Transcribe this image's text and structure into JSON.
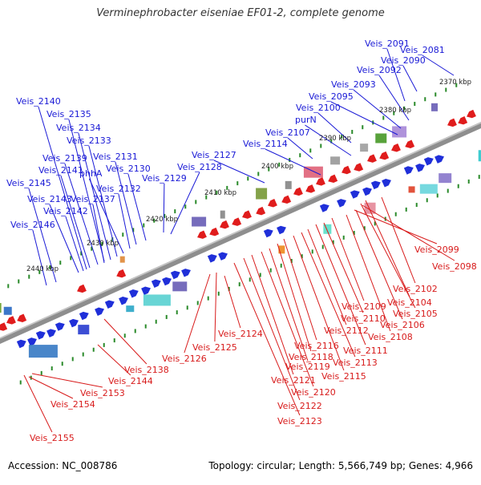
{
  "title": "Verminephrobacter eiseniae EF01-2, complete genome",
  "footer": {
    "accession": "Accession: NC_008786",
    "summary": "Topology: circular; Length: 5,566,749 bp; Genes: 4,966"
  },
  "colors": {
    "forward": "#1f2fd9",
    "reverse": "#e01c1c",
    "forward_label": "#1a1ad6",
    "reverse_label": "#d81b1b",
    "backbone": "#9a9a9a",
    "tick": "#2a8a2a"
  },
  "kbp_marks": [
    "2370 kbp",
    "2380 kbp",
    "2390 kbp",
    "2400 kbp",
    "2410 kbp",
    "2420 kbp",
    "2430 kbp",
    "2440 kbp"
  ],
  "genes_forward": [
    "Veis_2081",
    "Veis_2090",
    "Veis_2091",
    "Veis_2092",
    "Veis_2093",
    "Veis_2095",
    "Veis_2100",
    "purN",
    "Veis_2107",
    "Veis_2114",
    "Veis_2127",
    "Veis_2128",
    "Veis_2129",
    "Veis_2130",
    "Veis_2131",
    "Veis_2132",
    "phhA",
    "Veis_2133",
    "Veis_2134",
    "Veis_2135",
    "Veis_2137",
    "Veis_2139",
    "Veis_2140",
    "Veis_2141",
    "Veis_2142",
    "Veis_2143",
    "Veis_2145",
    "Veis_2146"
  ],
  "genes_reverse": [
    "Veis_2098",
    "Veis_2099",
    "Veis_2102",
    "Veis_2104",
    "Veis_2105",
    "Veis_2106",
    "Veis_2108",
    "Veis_2109",
    "Veis_2110",
    "Veis_2111",
    "Veis_2112",
    "Veis_2113",
    "Veis_2115",
    "Veis_2116",
    "Veis_2118",
    "Veis_2119",
    "Veis_2120",
    "Veis_2121",
    "Veis_2122",
    "Veis_2123",
    "Veis_2124",
    "Veis_2125",
    "Veis_2126",
    "Veis_2138",
    "Veis_2144",
    "Veis_2153",
    "Veis_2154",
    "Veis_2155"
  ]
}
